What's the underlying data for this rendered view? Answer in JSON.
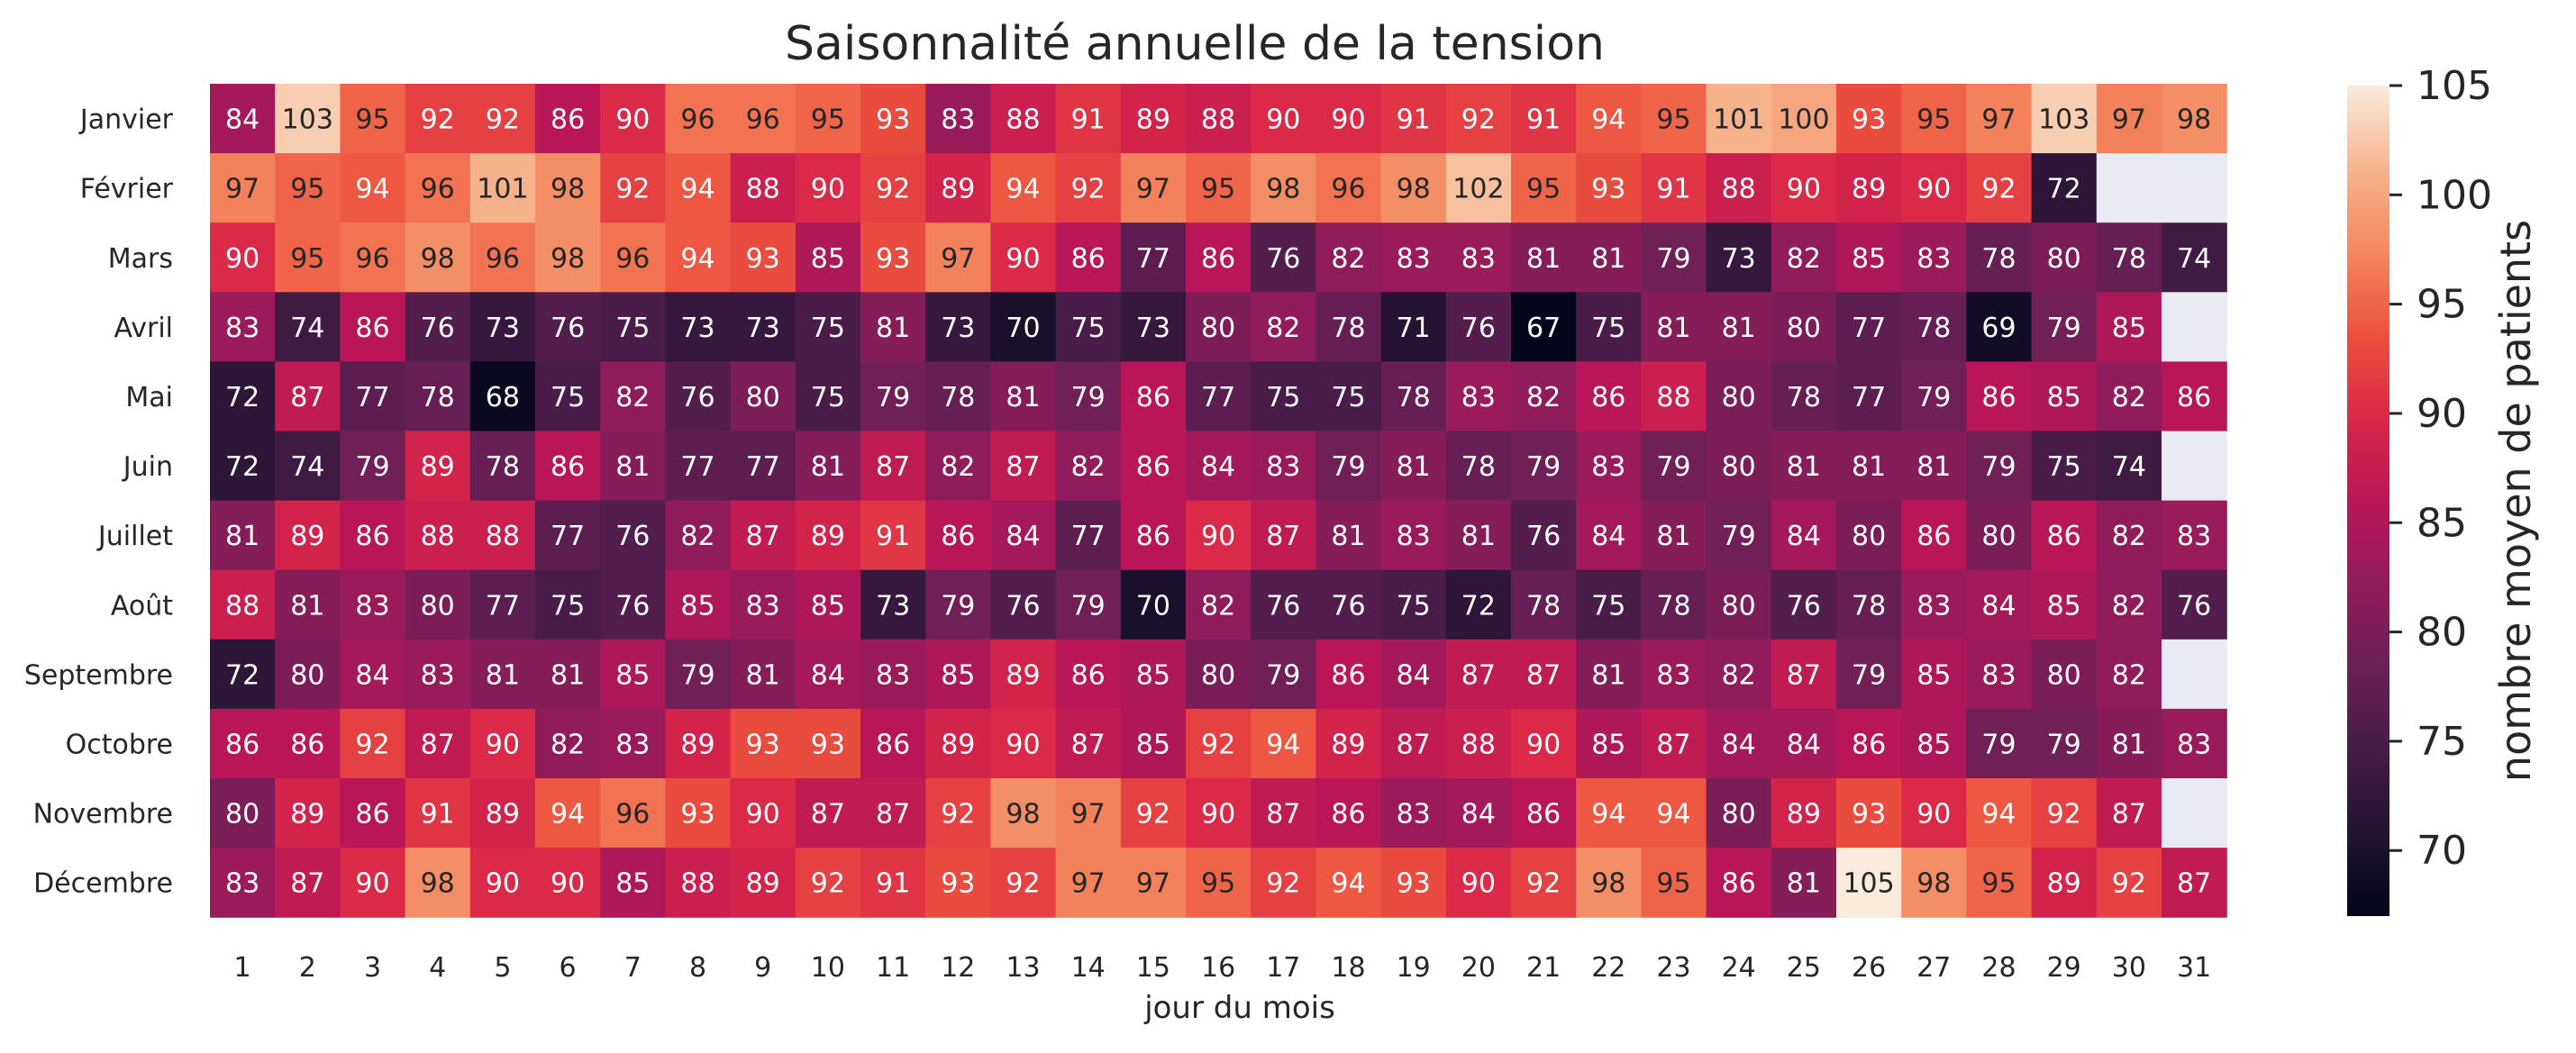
{
  "chart_data": {
    "type": "heatmap",
    "title": "Saisonnalité annuelle de la tension",
    "xlabel": "jour du mois",
    "ylabel": "",
    "x": [
      "1",
      "2",
      "3",
      "4",
      "5",
      "6",
      "7",
      "8",
      "9",
      "10",
      "11",
      "12",
      "13",
      "14",
      "15",
      "16",
      "17",
      "18",
      "19",
      "20",
      "21",
      "22",
      "23",
      "24",
      "25",
      "26",
      "27",
      "28",
      "29",
      "30",
      "31"
    ],
    "y": [
      "Janvier",
      "Février",
      "Mars",
      "Avril",
      "Mai",
      "Juin",
      "Juillet",
      "Août",
      "Septembre",
      "Octobre",
      "Novembre",
      "Décembre"
    ],
    "values": [
      [
        84,
        103,
        95,
        92,
        92,
        86,
        90,
        96,
        96,
        95,
        93,
        83,
        88,
        91,
        89,
        88,
        90,
        90,
        91,
        92,
        91,
        94,
        95,
        101,
        100,
        93,
        95,
        97,
        103,
        97,
        98
      ],
      [
        97,
        95,
        94,
        96,
        101,
        98,
        92,
        94,
        88,
        90,
        92,
        89,
        94,
        92,
        97,
        95,
        98,
        96,
        98,
        102,
        95,
        93,
        91,
        88,
        90,
        89,
        90,
        92,
        72,
        null,
        null
      ],
      [
        90,
        95,
        96,
        98,
        96,
        98,
        96,
        94,
        93,
        85,
        93,
        97,
        90,
        86,
        77,
        86,
        76,
        82,
        83,
        83,
        81,
        81,
        79,
        73,
        82,
        85,
        83,
        78,
        80,
        78,
        74
      ],
      [
        83,
        74,
        86,
        76,
        73,
        76,
        75,
        73,
        73,
        75,
        81,
        73,
        70,
        75,
        73,
        80,
        82,
        78,
        71,
        76,
        67,
        75,
        81,
        81,
        80,
        77,
        78,
        69,
        79,
        85,
        null
      ],
      [
        72,
        87,
        77,
        78,
        68,
        75,
        82,
        76,
        80,
        75,
        79,
        78,
        81,
        79,
        86,
        77,
        75,
        75,
        78,
        83,
        82,
        86,
        88,
        80,
        78,
        77,
        79,
        86,
        85,
        82,
        86
      ],
      [
        72,
        74,
        79,
        89,
        78,
        86,
        81,
        77,
        77,
        81,
        87,
        82,
        87,
        82,
        86,
        84,
        83,
        79,
        81,
        78,
        79,
        83,
        79,
        80,
        81,
        81,
        81,
        79,
        75,
        74,
        null
      ],
      [
        81,
        89,
        86,
        88,
        88,
        77,
        76,
        82,
        87,
        89,
        91,
        86,
        84,
        77,
        86,
        90,
        87,
        81,
        83,
        81,
        76,
        84,
        81,
        79,
        84,
        80,
        86,
        80,
        86,
        82,
        83
      ],
      [
        88,
        81,
        83,
        80,
        77,
        75,
        76,
        85,
        83,
        85,
        73,
        79,
        76,
        79,
        70,
        82,
        76,
        76,
        75,
        72,
        78,
        75,
        78,
        80,
        76,
        78,
        83,
        84,
        85,
        82,
        76
      ],
      [
        72,
        80,
        84,
        83,
        81,
        81,
        85,
        79,
        81,
        84,
        83,
        85,
        89,
        86,
        85,
        80,
        79,
        86,
        84,
        87,
        87,
        81,
        83,
        82,
        87,
        79,
        85,
        83,
        80,
        82,
        null
      ],
      [
        86,
        86,
        92,
        87,
        90,
        82,
        83,
        89,
        93,
        93,
        86,
        89,
        90,
        87,
        85,
        92,
        94,
        89,
        87,
        88,
        90,
        85,
        87,
        84,
        84,
        86,
        85,
        79,
        79,
        81,
        83
      ],
      [
        80,
        89,
        86,
        91,
        89,
        94,
        96,
        93,
        90,
        87,
        87,
        92,
        98,
        97,
        92,
        90,
        87,
        86,
        83,
        84,
        86,
        94,
        94,
        80,
        89,
        93,
        90,
        94,
        92,
        87,
        null
      ],
      [
        83,
        87,
        90,
        98,
        90,
        90,
        85,
        88,
        89,
        92,
        91,
        93,
        92,
        97,
        97,
        95,
        92,
        94,
        93,
        90,
        92,
        98,
        95,
        86,
        81,
        105,
        98,
        95,
        89,
        92,
        87
      ]
    ],
    "colorbar": {
      "label": "nombre moyen de patients",
      "min": 67,
      "max": 105,
      "ticks": [
        70,
        75,
        80,
        85,
        90,
        95,
        100,
        105
      ]
    },
    "colormap": "rocket",
    "missing_color": "#eaeaf2"
  }
}
